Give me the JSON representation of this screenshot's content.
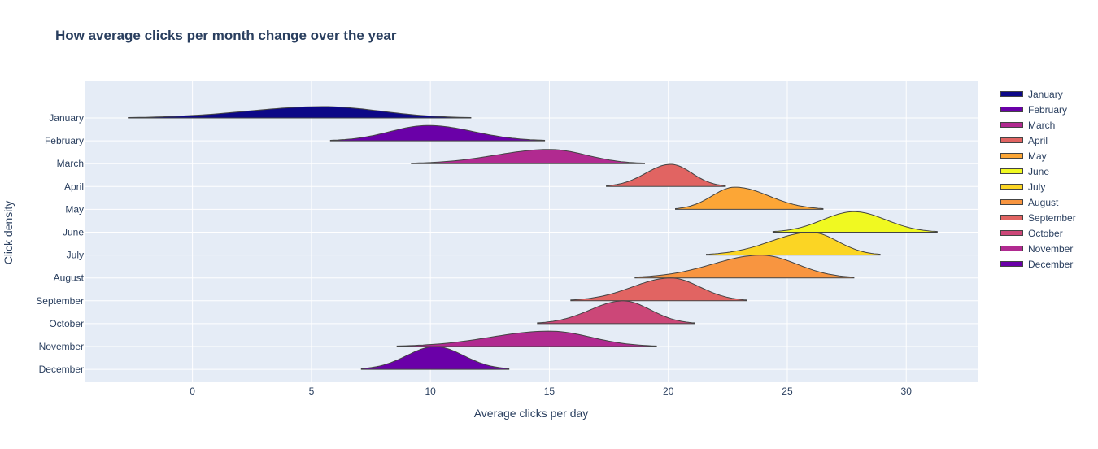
{
  "chart_data": {
    "type": "ridgeline",
    "title": "How average clicks per month change over the year",
    "xlabel": "Average clicks per day",
    "ylabel": "Click density",
    "xlim": [
      -4.5,
      33.0
    ],
    "x_ticks": [
      0,
      5,
      10,
      15,
      20,
      25,
      30
    ],
    "grid": true,
    "legend_position": "right",
    "series": [
      {
        "name": "January",
        "color": "#0d0887",
        "min": -2.7,
        "max": 11.7,
        "peak_x": 5.5,
        "peak_density": 1.0
      },
      {
        "name": "February",
        "color": "#6a00a8",
        "min": 5.8,
        "max": 14.8,
        "peak_x": 9.9,
        "peak_density": 1.35
      },
      {
        "name": "March",
        "color": "#b12a90",
        "min": 9.2,
        "max": 19.0,
        "peak_x": 15.0,
        "peak_density": 1.25
      },
      {
        "name": "April",
        "color": "#e16462",
        "min": 17.4,
        "max": 22.4,
        "peak_x": 20.1,
        "peak_density": 1.95
      },
      {
        "name": "May",
        "color": "#fca636",
        "min": 20.3,
        "max": 26.5,
        "peak_x": 22.8,
        "peak_density": 1.95
      },
      {
        "name": "June",
        "color": "#f0f921",
        "min": 24.4,
        "max": 31.3,
        "peak_x": 27.8,
        "peak_density": 1.8
      },
      {
        "name": "July",
        "color": "#fbd524",
        "min": 21.6,
        "max": 28.9,
        "peak_x": 26.0,
        "peak_density": 2.0
      },
      {
        "name": "August",
        "color": "#f89540",
        "min": 18.6,
        "max": 27.8,
        "peak_x": 23.9,
        "peak_density": 2.0
      },
      {
        "name": "September",
        "color": "#e16462",
        "min": 15.9,
        "max": 23.3,
        "peak_x": 20.1,
        "peak_density": 2.0
      },
      {
        "name": "October",
        "color": "#cc4778",
        "min": 14.5,
        "max": 21.1,
        "peak_x": 18.1,
        "peak_density": 2.0
      },
      {
        "name": "November",
        "color": "#b12a90",
        "min": 8.6,
        "max": 19.5,
        "peak_x": 15.0,
        "peak_density": 1.35
      },
      {
        "name": "December",
        "color": "#6a00a8",
        "min": 7.1,
        "max": 13.3,
        "peak_x": 10.2,
        "peak_density": 2.0
      }
    ]
  }
}
